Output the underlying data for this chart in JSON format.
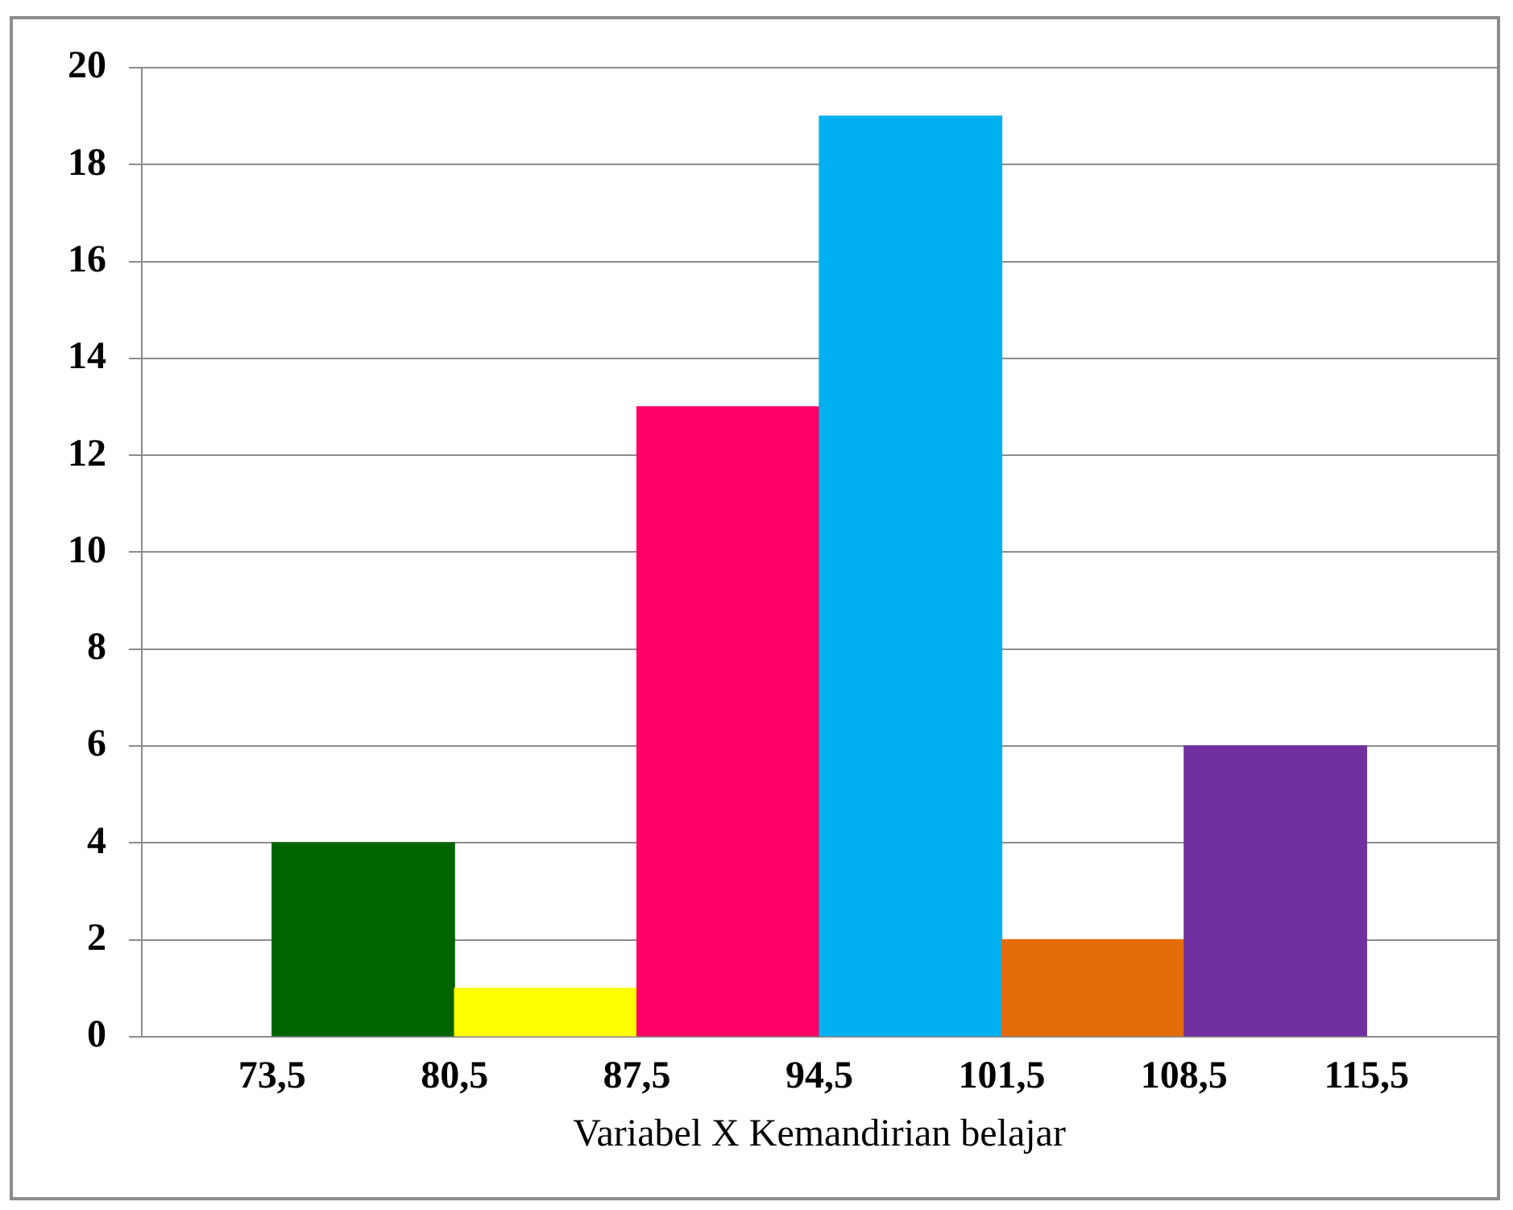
{
  "chart_data": {
    "type": "histogram",
    "xlabel": "Variabel X Kemandirian belajar",
    "bins": [
      73.5,
      80.5,
      87.5,
      94.5,
      101.5,
      108.5,
      115.5
    ],
    "values": [
      4,
      1,
      13,
      19,
      2,
      6
    ],
    "colors": [
      "#006400",
      "#ffff00",
      "#ff0066",
      "#00b0f0",
      "#e36c09",
      "#7030a0"
    ],
    "xlim": [
      68.5,
      120.5
    ],
    "xticks": [
      {
        "value": 73.5,
        "label": "73,5"
      },
      {
        "value": 80.5,
        "label": "80,5"
      },
      {
        "value": 87.5,
        "label": "87,5"
      },
      {
        "value": 94.5,
        "label": "94,5"
      },
      {
        "value": 101.5,
        "label": "101,5"
      },
      {
        "value": 108.5,
        "label": "108,5"
      },
      {
        "value": 115.5,
        "label": "115,5"
      }
    ],
    "ylim": [
      0,
      20
    ],
    "yticks": [
      0,
      2,
      4,
      6,
      8,
      10,
      12,
      14,
      16,
      18,
      20
    ],
    "grid": "y",
    "legend": false
  }
}
